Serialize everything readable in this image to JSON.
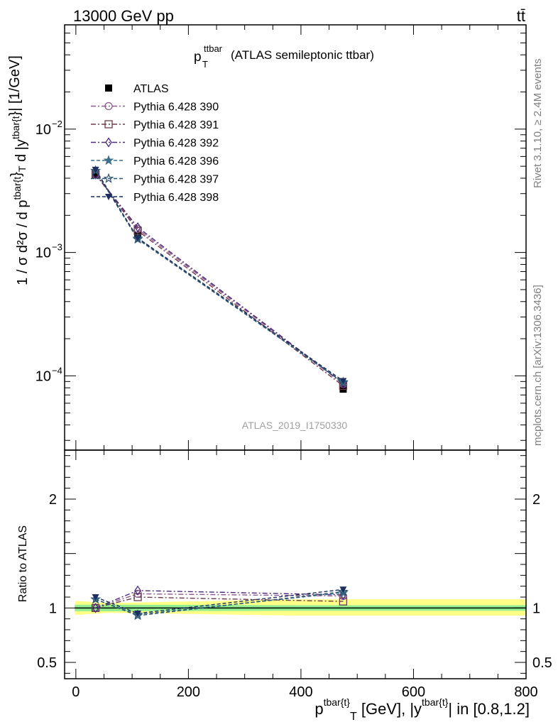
{
  "header": {
    "left": "13000 GeV pp",
    "right": "tt̄"
  },
  "side_labels": {
    "rivet": "Rivet 3.1.10, ≥ 2.4M events",
    "mcplots": "mcplots.cern.ch [arXiv:1306.3436]"
  },
  "analysis_id": "ATLAS_2019_I1750330",
  "title": {
    "main": "p",
    "main_sub": "T",
    "main_sup": "ttbar",
    "rest": "(ATLAS semileptonic ttbar)"
  },
  "colors": {
    "ATLAS": "#000000",
    "Pythia 6.428 390": "#8b5a8c",
    "Pythia 6.428 391": "#6e3b4a",
    "Pythia 6.428 392": "#4b2a7a",
    "Pythia 6.428 396": "#3f6f8a",
    "Pythia 6.428 397": "#2e5570",
    "Pythia 6.428 398": "#1c2f5e",
    "band_inner": "#90ee90",
    "band_outer": "#ffff88"
  },
  "chart_data": [
    {
      "type": "scatter",
      "panel": "main",
      "ylog": true,
      "ylabel": "1 / σ d²σ / d p^{tbar{t}}_T d |y^{tbar{t}}| [1/GeV]",
      "xlim": [
        -20,
        800
      ],
      "ylim": [
        2.5e-05,
        0.07
      ],
      "y_ticks": [
        "10^{-2}",
        "10^{-3}",
        "10^{-4}"
      ],
      "x": [
        35,
        110,
        475
      ],
      "legend_position": "top-left",
      "series": [
        {
          "name": "ATLAS",
          "marker": "filled-square",
          "line": "none",
          "values": [
            0.0043,
            0.00138,
            7.8e-05
          ]
        },
        {
          "name": "Pythia 6.428 390",
          "marker": "open-circle",
          "line": "dash-dot",
          "values": [
            0.0043,
            0.00155,
            8.6e-05
          ]
        },
        {
          "name": "Pythia 6.428 391",
          "marker": "open-square",
          "line": "dash-dot",
          "values": [
            0.0043,
            0.0015,
            8.3e-05
          ]
        },
        {
          "name": "Pythia 6.428 392",
          "marker": "open-diamond",
          "line": "dash-dot",
          "values": [
            0.0043,
            0.0016,
            8.7e-05
          ]
        },
        {
          "name": "Pythia 6.428 396",
          "marker": "star",
          "line": "dashed",
          "values": [
            0.0046,
            0.0013,
            8.8e-05
          ]
        },
        {
          "name": "Pythia 6.428 397",
          "marker": "open-star",
          "line": "dashed",
          "values": [
            0.0046,
            0.00128,
            8.9e-05
          ]
        },
        {
          "name": "Pythia 6.428 398",
          "marker": "filled-triangle-down",
          "line": "dashed",
          "values": [
            0.0047,
            0.00131,
            9.1e-05
          ]
        }
      ]
    },
    {
      "type": "scatter",
      "panel": "ratio",
      "ylabel": "Ratio to ATLAS",
      "xlabel": "p^{tbar{t}}_T [GeV], |y^{tbar{t}}| in [0.8,1.2]",
      "xlim": [
        -20,
        800
      ],
      "ylim": [
        0.35,
        2.45
      ],
      "x_ticks": [
        0,
        200,
        400,
        600,
        800
      ],
      "y_ticks": [
        0.5,
        1,
        2
      ],
      "x": [
        35,
        110,
        475
      ],
      "bands": {
        "inner": [
          [
            -2,
            0.97,
            1.03
          ],
          [
            60,
            0.97,
            1.03
          ],
          [
            400,
            0.975,
            1.025
          ],
          [
            800,
            0.975,
            1.025
          ]
        ],
        "outer": [
          [
            -2,
            0.935,
            1.065
          ],
          [
            60,
            0.955,
            1.045
          ],
          [
            400,
            0.93,
            1.08
          ],
          [
            800,
            0.93,
            1.08
          ]
        ]
      },
      "series": [
        {
          "name": "Pythia 6.428 390",
          "values": [
            1.0,
            1.13,
            1.11
          ]
        },
        {
          "name": "Pythia 6.428 391",
          "values": [
            1.0,
            1.1,
            1.06
          ]
        },
        {
          "name": "Pythia 6.428 392",
          "values": [
            1.0,
            1.16,
            1.12
          ]
        },
        {
          "name": "Pythia 6.428 396",
          "values": [
            1.08,
            0.94,
            1.14
          ]
        },
        {
          "name": "Pythia 6.428 397",
          "values": [
            1.08,
            0.93,
            1.15
          ]
        },
        {
          "name": "Pythia 6.428 398",
          "values": [
            1.1,
            0.95,
            1.17
          ]
        }
      ]
    }
  ]
}
